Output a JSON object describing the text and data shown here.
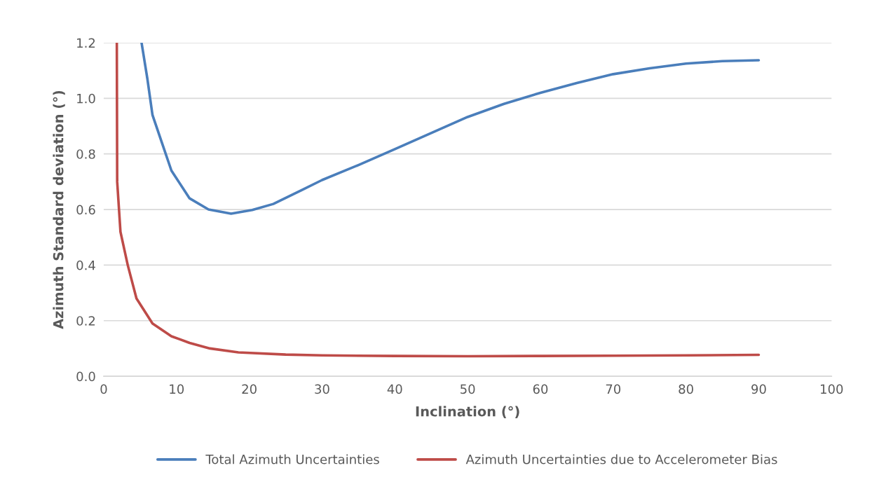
{
  "chart_data": {
    "type": "line",
    "xlabel": "Inclination (°)",
    "ylabel": "Azimuth Standard deviation (°)",
    "xlim": [
      0,
      100
    ],
    "xticks": [
      0,
      10,
      20,
      30,
      40,
      50,
      60,
      70,
      80,
      90,
      100
    ],
    "ylim": [
      0,
      1.2
    ],
    "yticks": [
      {
        "value": 0,
        "label": "0.0"
      },
      {
        "value": 0.2,
        "label": "0.2"
      },
      {
        "value": 0.4,
        "label": "0.4"
      },
      {
        "value": 0.6,
        "label": "0.6"
      },
      {
        "value": 0.8,
        "label": "0.8"
      },
      {
        "value": 1.0,
        "label": "1.0"
      },
      {
        "value": 1.2,
        "label": "1.2"
      }
    ],
    "grid": "y",
    "legend": "bottom",
    "marker": "none",
    "line_style": "solid",
    "series": [
      {
        "name": "Total Azimuth Uncertainties",
        "color": "#4a7ebb",
        "x": [
          5.2,
          6.0,
          6.7,
          8.0,
          9.3,
          11.8,
          14.4,
          17.5,
          20.4,
          23.3,
          27.2,
          30,
          35,
          40,
          45,
          50,
          55,
          60,
          65,
          70,
          75,
          80,
          85,
          90
        ],
        "values": [
          1.2,
          1.07,
          0.94,
          0.84,
          0.74,
          0.64,
          0.6,
          0.585,
          0.598,
          0.62,
          0.67,
          0.706,
          0.76,
          0.817,
          0.875,
          0.933,
          0.98,
          1.02,
          1.055,
          1.087,
          1.108,
          1.125,
          1.134,
          1.137
        ]
      },
      {
        "name": "Azimuth Uncertainties due to Accelerometer Bias",
        "color": "#be4b48",
        "x": [
          1.8,
          1.85,
          2.3,
          3.3,
          4.5,
          6.7,
          9.3,
          11.8,
          14.6,
          18.5,
          25,
          30,
          40,
          50,
          60,
          70,
          80,
          90
        ],
        "values": [
          1.2,
          0.7,
          0.52,
          0.4,
          0.28,
          0.19,
          0.144,
          0.12,
          0.1,
          0.086,
          0.078,
          0.075,
          0.073,
          0.072,
          0.073,
          0.074,
          0.075,
          0.077
        ]
      }
    ]
  }
}
